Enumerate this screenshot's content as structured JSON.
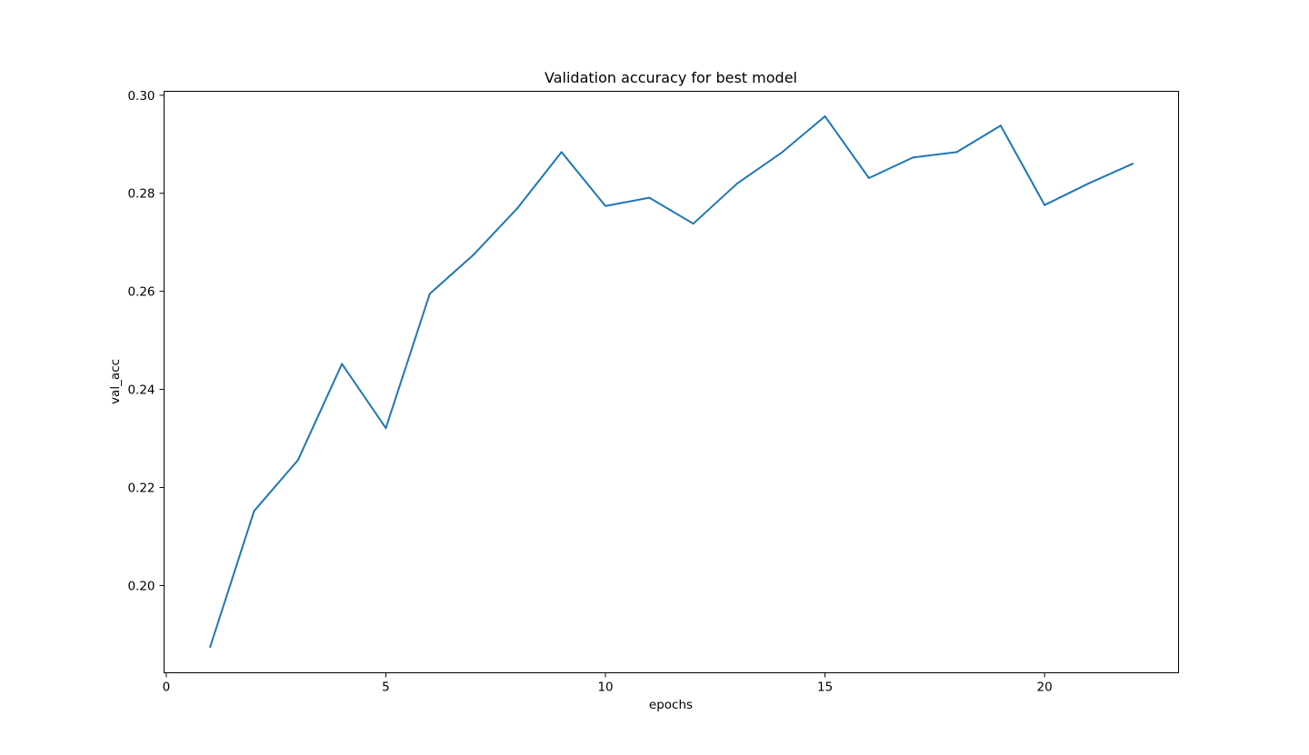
{
  "chart_data": {
    "type": "line",
    "title": "Validation accuracy for best model",
    "xlabel": "epochs",
    "ylabel": "val_acc",
    "xlim": [
      -0.05,
      23.05
    ],
    "ylim": [
      0.1822,
      0.3008
    ],
    "xticks": [
      0,
      5,
      10,
      15,
      20
    ],
    "yticks": [
      0.2,
      0.22,
      0.24,
      0.26,
      0.28,
      0.3
    ],
    "xtick_labels": [
      "0",
      "5",
      "10",
      "15",
      "20"
    ],
    "ytick_labels": [
      "0.20",
      "0.22",
      "0.24",
      "0.26",
      "0.28",
      "0.30"
    ],
    "grid": false,
    "series": [
      {
        "color": "#1f77b4",
        "x": [
          1,
          2,
          3,
          4,
          5,
          6,
          7,
          8,
          9,
          10,
          11,
          12,
          13,
          14,
          15,
          16,
          17,
          18,
          19,
          20,
          21,
          22
        ],
        "values": [
          0.1875,
          0.2152,
          0.2256,
          0.2452,
          0.2321,
          0.2595,
          0.2675,
          0.277,
          0.2884,
          0.2774,
          0.2791,
          0.2738,
          0.282,
          0.2882,
          0.2957,
          0.2831,
          0.2873,
          0.2884,
          0.2938,
          0.2776,
          0.282,
          0.286
        ]
      }
    ]
  }
}
